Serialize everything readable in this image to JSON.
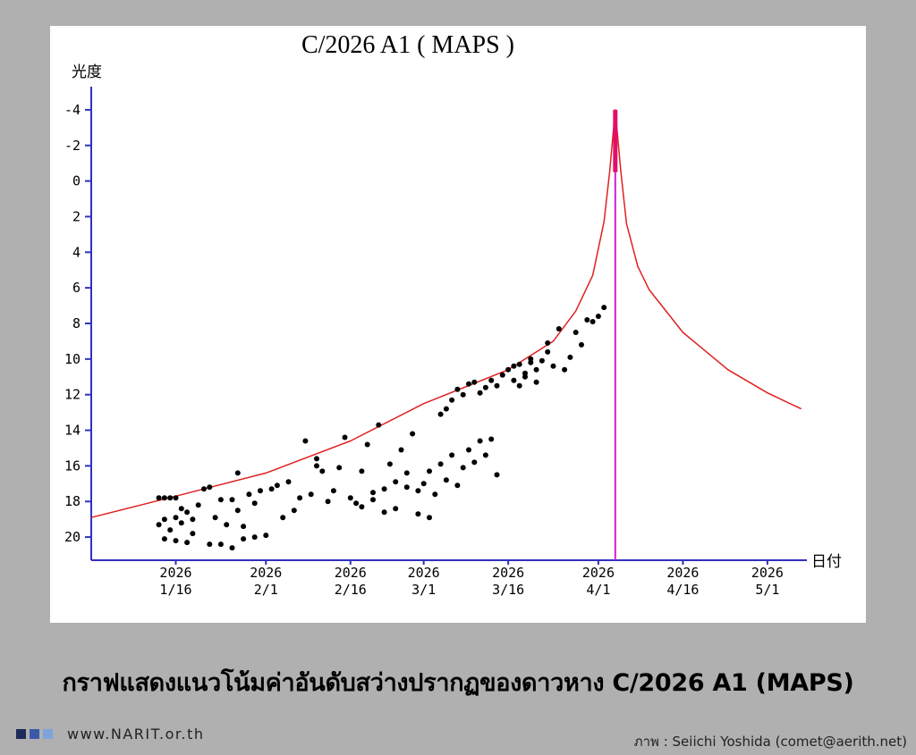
{
  "caption": "กราฟแสดงแนวโน้มค่าอันดับสว่างปรากฏของดาวหาง C/2026 A1 (MAPS)",
  "footer": {
    "website": "www.NARIT.or.th",
    "credit": "ภาพ : Seiichi Yoshida (comet@aerith.net)",
    "brand_colors": [
      "#1e2a5a",
      "#3a5aa8",
      "#7fa2dc"
    ]
  },
  "chart_data": {
    "type": "scatter",
    "title": "C/2026 A1 ( MAPS )",
    "ylabel": "光度",
    "xlabel": "日付",
    "y_inverted": true,
    "ylim": [
      21.3,
      -5.3
    ],
    "xlim": [
      "2026-01-01",
      "2026-05-08"
    ],
    "y_ticks": [
      -4,
      -2,
      0,
      2,
      4,
      6,
      8,
      10,
      12,
      14,
      16,
      18,
      20
    ],
    "x_ticks": [
      {
        "year": "2026",
        "label": "1/16",
        "date": "2026-01-16"
      },
      {
        "year": "2026",
        "label": "2/1",
        "date": "2026-02-01"
      },
      {
        "year": "2026",
        "label": "2/16",
        "date": "2026-02-16"
      },
      {
        "year": "2026",
        "label": "3/1",
        "date": "2026-03-01"
      },
      {
        "year": "2026",
        "label": "3/16",
        "date": "2026-03-16"
      },
      {
        "year": "2026",
        "label": "4/1",
        "date": "2026-04-01"
      },
      {
        "year": "2026",
        "label": "4/16",
        "date": "2026-04-16"
      },
      {
        "year": "2026",
        "label": "5/1",
        "date": "2026-05-01"
      }
    ],
    "perihelion_date": "2026-04-04",
    "colors": {
      "axes": "#3030c0",
      "curve": "#e02020",
      "peak": "#e0106a",
      "perihelion_line": "#d020d0",
      "points": "#000000"
    },
    "predicted_curve": [
      [
        "2026-01-01",
        18.9
      ],
      [
        "2026-01-16",
        17.7
      ],
      [
        "2026-02-01",
        16.4
      ],
      [
        "2026-02-16",
        14.6
      ],
      [
        "2026-03-01",
        12.5
      ],
      [
        "2026-03-16",
        10.6
      ],
      [
        "2026-03-24",
        9.0
      ],
      [
        "2026-03-28",
        7.3
      ],
      [
        "2026-03-31",
        5.3
      ],
      [
        "2026-04-02",
        2.3
      ],
      [
        "2026-04-03",
        -0.5
      ],
      [
        "2026-04-04",
        -4.0
      ],
      [
        "2026-04-05",
        -0.5
      ],
      [
        "2026-04-06",
        2.4
      ],
      [
        "2026-04-08",
        4.8
      ],
      [
        "2026-04-10",
        6.1
      ],
      [
        "2026-04-16",
        8.5
      ],
      [
        "2026-04-24",
        10.6
      ],
      [
        "2026-05-01",
        11.9
      ],
      [
        "2026-05-07",
        12.8
      ]
    ],
    "observations": [
      [
        "2026-01-13",
        17.8
      ],
      [
        "2026-01-14",
        17.8
      ],
      [
        "2026-01-15",
        17.8
      ],
      [
        "2026-01-16",
        17.8
      ],
      [
        "2026-01-13",
        19.3
      ],
      [
        "2026-01-14",
        19.0
      ],
      [
        "2026-01-15",
        19.6
      ],
      [
        "2026-01-16",
        18.9
      ],
      [
        "2026-01-17",
        19.2
      ],
      [
        "2026-01-18",
        18.6
      ],
      [
        "2026-01-19",
        19.0
      ],
      [
        "2026-01-20",
        18.2
      ],
      [
        "2026-01-14",
        20.1
      ],
      [
        "2026-01-16",
        20.2
      ],
      [
        "2026-01-18",
        20.3
      ],
      [
        "2026-01-22",
        20.4
      ],
      [
        "2026-01-24",
        20.4
      ],
      [
        "2026-01-26",
        20.6
      ],
      [
        "2026-01-17",
        18.4
      ],
      [
        "2026-01-19",
        19.8
      ],
      [
        "2026-01-21",
        17.3
      ],
      [
        "2026-01-22",
        17.2
      ],
      [
        "2026-01-23",
        18.9
      ],
      [
        "2026-01-24",
        17.9
      ],
      [
        "2026-01-25",
        19.3
      ],
      [
        "2026-01-26",
        17.9
      ],
      [
        "2026-01-27",
        18.5
      ],
      [
        "2026-01-28",
        19.4
      ],
      [
        "2026-01-29",
        17.6
      ],
      [
        "2026-01-30",
        18.1
      ],
      [
        "2026-01-31",
        17.4
      ],
      [
        "2026-01-27",
        16.4
      ],
      [
        "2026-01-28",
        20.1
      ],
      [
        "2026-01-30",
        20.0
      ],
      [
        "2026-02-01",
        19.9
      ],
      [
        "2026-02-02",
        17.3
      ],
      [
        "2026-02-03",
        17.1
      ],
      [
        "2026-02-04",
        18.9
      ],
      [
        "2026-02-05",
        16.9
      ],
      [
        "2026-02-06",
        18.5
      ],
      [
        "2026-02-07",
        17.8
      ],
      [
        "2026-02-08",
        14.6
      ],
      [
        "2026-02-09",
        17.6
      ],
      [
        "2026-02-10",
        15.6
      ],
      [
        "2026-02-11",
        16.3
      ],
      [
        "2026-02-12",
        18.0
      ],
      [
        "2026-02-13",
        17.4
      ],
      [
        "2026-02-14",
        16.1
      ],
      [
        "2026-02-15",
        14.4
      ],
      [
        "2026-02-16",
        17.8
      ],
      [
        "2026-02-17",
        18.1
      ],
      [
        "2026-02-18",
        16.3
      ],
      [
        "2026-02-19",
        14.8
      ],
      [
        "2026-02-20",
        17.5
      ],
      [
        "2026-02-21",
        13.7
      ],
      [
        "2026-02-22",
        17.3
      ],
      [
        "2026-02-23",
        15.9
      ],
      [
        "2026-02-24",
        18.4
      ],
      [
        "2026-02-25",
        15.1
      ],
      [
        "2026-02-26",
        17.2
      ],
      [
        "2026-02-27",
        14.2
      ],
      [
        "2026-02-28",
        18.7
      ],
      [
        "2026-02-18",
        18.3
      ],
      [
        "2026-02-20",
        17.9
      ],
      [
        "2026-02-22",
        18.6
      ],
      [
        "2026-02-24",
        16.9
      ],
      [
        "2026-02-26",
        16.4
      ],
      [
        "2026-02-28",
        17.4
      ],
      [
        "2026-03-01",
        17.0
      ],
      [
        "2026-03-02",
        16.3
      ],
      [
        "2026-03-03",
        17.6
      ],
      [
        "2026-03-04",
        15.9
      ],
      [
        "2026-03-05",
        16.8
      ],
      [
        "2026-03-06",
        15.4
      ],
      [
        "2026-03-07",
        17.1
      ],
      [
        "2026-03-08",
        16.1
      ],
      [
        "2026-03-09",
        15.1
      ],
      [
        "2026-03-10",
        15.8
      ],
      [
        "2026-03-11",
        14.6
      ],
      [
        "2026-03-12",
        15.4
      ],
      [
        "2026-03-13",
        14.5
      ],
      [
        "2026-03-14",
        16.5
      ],
      [
        "2026-03-02",
        18.9
      ],
      [
        "2026-03-04",
        13.1
      ],
      [
        "2026-02-10",
        16.0
      ],
      [
        "2026-03-05",
        12.8
      ],
      [
        "2026-03-06",
        12.3
      ],
      [
        "2026-03-07",
        11.7
      ],
      [
        "2026-03-08",
        12.0
      ],
      [
        "2026-03-09",
        11.4
      ],
      [
        "2026-03-10",
        11.3
      ],
      [
        "2026-03-11",
        11.9
      ],
      [
        "2026-03-12",
        11.6
      ],
      [
        "2026-03-13",
        11.2
      ],
      [
        "2026-03-14",
        11.5
      ],
      [
        "2026-03-15",
        10.9
      ],
      [
        "2026-03-16",
        10.6
      ],
      [
        "2026-03-17",
        11.2
      ],
      [
        "2026-03-18",
        10.3
      ],
      [
        "2026-03-19",
        10.8
      ],
      [
        "2026-03-20",
        10.0
      ],
      [
        "2026-03-21",
        11.3
      ],
      [
        "2026-03-22",
        10.1
      ],
      [
        "2026-03-23",
        9.6
      ],
      [
        "2026-03-24",
        10.4
      ],
      [
        "2026-03-25",
        8.3
      ],
      [
        "2026-03-26",
        10.6
      ],
      [
        "2026-03-27",
        9.9
      ],
      [
        "2026-03-28",
        8.5
      ],
      [
        "2026-03-29",
        9.2
      ],
      [
        "2026-03-30",
        7.8
      ],
      [
        "2026-03-31",
        7.9
      ],
      [
        "2026-04-01",
        7.6
      ],
      [
        "2026-04-02",
        7.1
      ],
      [
        "2026-03-23",
        9.1
      ],
      [
        "2026-03-21",
        10.6
      ],
      [
        "2026-03-19",
        11.0
      ],
      [
        "2026-03-17",
        10.4
      ],
      [
        "2026-03-18",
        11.5
      ],
      [
        "2026-03-20",
        10.2
      ]
    ]
  }
}
